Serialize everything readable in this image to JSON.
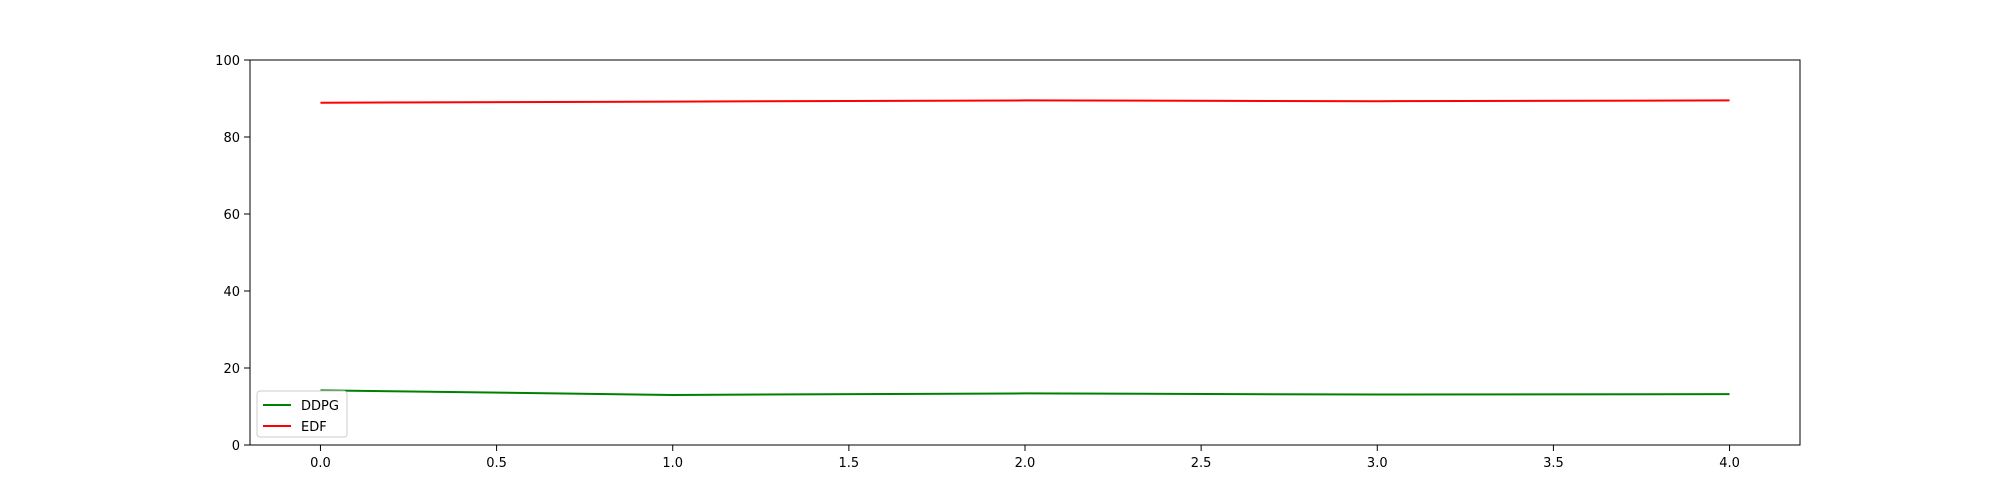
{
  "chart_data": {
    "type": "line",
    "title": "",
    "xlabel": "",
    "ylabel": "",
    "xlim": [
      -0.2,
      4.2
    ],
    "ylim": [
      0,
      100
    ],
    "xticks": [
      "0.0",
      "0.5",
      "1.0",
      "1.5",
      "2.0",
      "2.5",
      "3.0",
      "3.5",
      "4.0"
    ],
    "xtick_values": [
      0,
      0.5,
      1,
      1.5,
      2,
      2.5,
      3,
      3.5,
      4
    ],
    "yticks": [
      "0",
      "20",
      "40",
      "60",
      "80",
      "100"
    ],
    "ytick_values": [
      0,
      20,
      40,
      60,
      80,
      100
    ],
    "grid": false,
    "legend_position": "lower-left",
    "x": [
      0,
      1,
      2,
      3,
      4
    ],
    "series": [
      {
        "name": "DDPG",
        "color": "#008000",
        "values": [
          14.2,
          13.0,
          13.4,
          13.1,
          13.2
        ]
      },
      {
        "name": "EDF",
        "color": "#ff0000",
        "values": [
          88.9,
          89.2,
          89.5,
          89.3,
          89.5
        ]
      }
    ]
  }
}
